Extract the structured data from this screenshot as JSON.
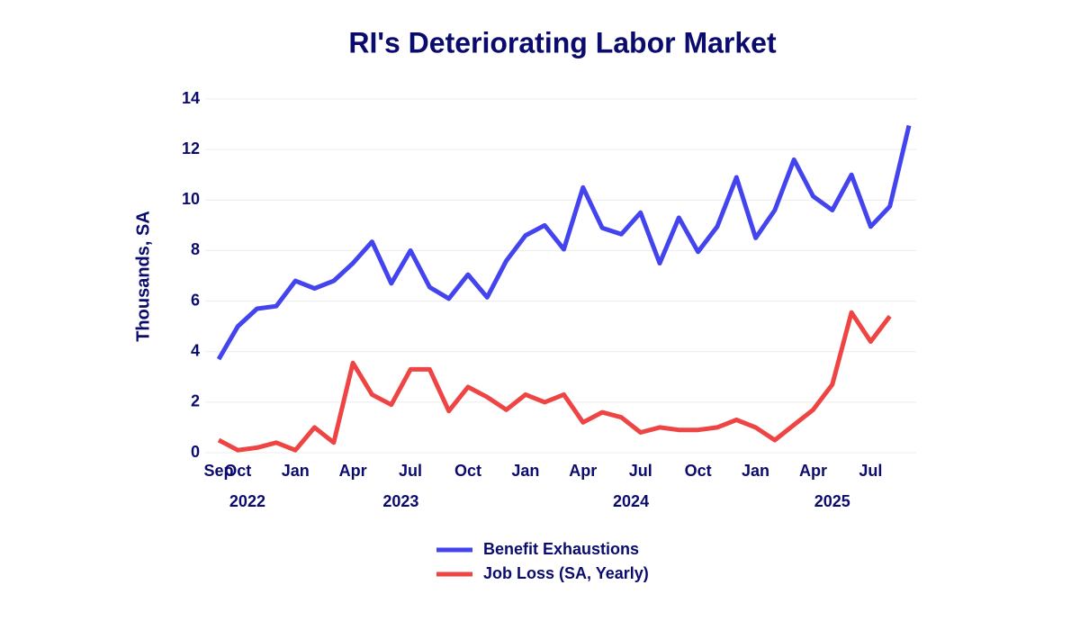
{
  "chart_data": {
    "type": "line",
    "title": "RI's Deteriorating Labor Market",
    "y_label": "Thousands, SA",
    "x": [
      "2022-09",
      "2022-10",
      "2022-11",
      "2022-12",
      "2023-01",
      "2023-02",
      "2023-03",
      "2023-04",
      "2023-05",
      "2023-06",
      "2023-07",
      "2023-08",
      "2023-09",
      "2023-10",
      "2023-11",
      "2023-12",
      "2024-01",
      "2024-02",
      "2024-03",
      "2024-04",
      "2024-05",
      "2024-06",
      "2024-07",
      "2024-08",
      "2024-09",
      "2024-10",
      "2024-11",
      "2024-12",
      "2025-01",
      "2025-02",
      "2025-03",
      "2025-04",
      "2025-05",
      "2025-06",
      "2025-07",
      "2025-08",
      "2025-09"
    ],
    "series": [
      {
        "name": "Benefit Exhaustions",
        "color": "#4444ee",
        "values": [
          3.7,
          5.0,
          5.7,
          5.8,
          6.8,
          6.5,
          6.8,
          7.5,
          8.35,
          6.7,
          8.0,
          6.55,
          6.1,
          7.05,
          6.15,
          7.6,
          8.6,
          9.0,
          8.05,
          10.5,
          8.9,
          8.65,
          9.5,
          7.5,
          9.3,
          7.95,
          8.95,
          10.9,
          8.5,
          9.6,
          11.6,
          10.15,
          9.6,
          11.0,
          8.95,
          9.75,
          12.95
        ]
      },
      {
        "name": "Job Loss (SA, Yearly)",
        "color": "#ee4444",
        "values": [
          0.5,
          0.1,
          0.2,
          0.4,
          0.1,
          1.0,
          0.4,
          3.55,
          2.3,
          1.9,
          3.3,
          3.3,
          1.65,
          2.6,
          2.2,
          1.7,
          2.3,
          2.0,
          2.3,
          1.2,
          1.6,
          1.4,
          0.8,
          1.0,
          0.9,
          0.9,
          1.0,
          1.3,
          1.0,
          0.5,
          1.1,
          1.7,
          2.7,
          5.55,
          4.4,
          5.4,
          null
        ]
      }
    ],
    "xlim": [
      "2022-09",
      "2025-09"
    ],
    "xticks": [
      {
        "value": "2022-09",
        "label": "Sep"
      },
      {
        "value": "2022-10",
        "label": "Oct"
      },
      {
        "value": "2023-01",
        "label": "Jan"
      },
      {
        "value": "2023-04",
        "label": "Apr"
      },
      {
        "value": "2023-07",
        "label": "Jul"
      },
      {
        "value": "2023-10",
        "label": "Oct"
      },
      {
        "value": "2024-01",
        "label": "Jan"
      },
      {
        "value": "2024-04",
        "label": "Apr"
      },
      {
        "value": "2024-07",
        "label": "Jul"
      },
      {
        "value": "2024-10",
        "label": "Oct"
      },
      {
        "value": "2025-01",
        "label": "Jan"
      },
      {
        "value": "2025-04",
        "label": "Apr"
      },
      {
        "value": "2025-07",
        "label": "Jul"
      }
    ],
    "xgroups": [
      2022,
      2023,
      2024,
      2025
    ],
    "ylim": [
      0,
      14
    ],
    "yticks": [
      0,
      2,
      4,
      6,
      8,
      10,
      12,
      14
    ],
    "grid": true,
    "legend": "bottom"
  }
}
